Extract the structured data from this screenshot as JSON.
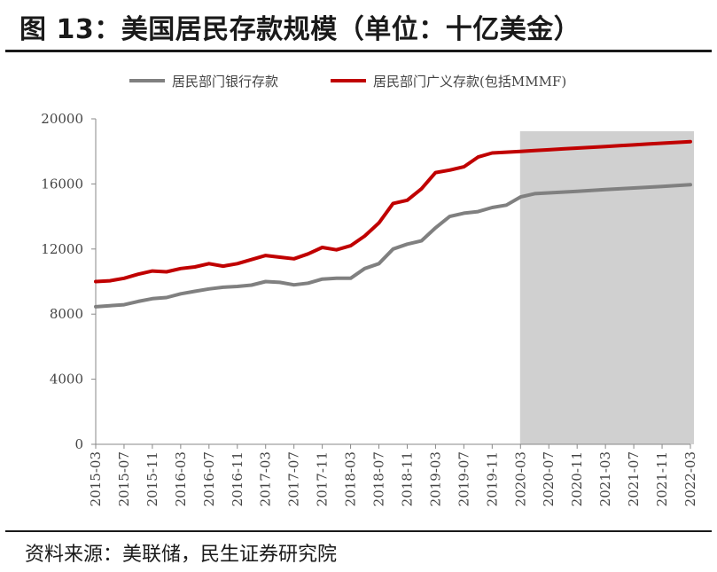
{
  "header": {
    "title": "图 13：美国居民存款规模（单位：十亿美金）"
  },
  "footer": {
    "source": "资料来源：美联储，民生证券研究院"
  },
  "chart_data": {
    "type": "line",
    "ylim": [
      0,
      20000
    ],
    "yticks": [
      0,
      4000,
      8000,
      12000,
      16000,
      20000
    ],
    "grid": false,
    "legend_position": "top",
    "x_tick_labels": [
      "2015-03",
      "2015-07",
      "2015-11",
      "2016-03",
      "2016-07",
      "2016-11",
      "2017-03",
      "2017-07",
      "2017-11",
      "2018-03",
      "2018-07",
      "2018-11",
      "2019-03",
      "2019-07",
      "2019-11",
      "2020-03",
      "2020-07",
      "2020-11",
      "2021-03",
      "2021-07",
      "2021-11",
      "2022-03"
    ],
    "shaded_region": {
      "from": "2020-03",
      "to": "2022-03",
      "color": "#d0d0d0"
    },
    "series": [
      {
        "name": "居民部门银行存款",
        "color": "#808080",
        "x": [
          "2015-03",
          "2015-05",
          "2015-07",
          "2015-09",
          "2015-11",
          "2016-01",
          "2016-03",
          "2016-05",
          "2016-07",
          "2016-09",
          "2016-11",
          "2017-01",
          "2017-03",
          "2017-05",
          "2017-07",
          "2017-09",
          "2017-11",
          "2018-01",
          "2018-03",
          "2018-05",
          "2018-07",
          "2018-09",
          "2018-11",
          "2019-01",
          "2019-03",
          "2019-05",
          "2019-07",
          "2019-09",
          "2019-11",
          "2020-01",
          "2020-03",
          "2020-05",
          "2020-07",
          "2020-09",
          "2020-11",
          "2021-01",
          "2021-03",
          "2021-05",
          "2021-07",
          "2021-09",
          "2021-11",
          "2022-01",
          "2022-03"
        ],
        "values": [
          8450,
          8520,
          8580,
          8780,
          8950,
          9020,
          9250,
          9400,
          9550,
          9650,
          9700,
          9780,
          10000,
          9950,
          9800,
          9900,
          10150,
          10200,
          10200,
          10800,
          11100,
          12000,
          12300,
          12500,
          13300,
          14000,
          14200,
          14300,
          14550,
          14700,
          15200,
          15400,
          15450,
          15500,
          15550,
          15600,
          15650,
          15700,
          15750,
          15800,
          15850,
          15900,
          15950
        ]
      },
      {
        "name": "居民部门广义存款(包括MMMF)",
        "color": "#c00000",
        "x": [
          "2015-03",
          "2015-05",
          "2015-07",
          "2015-09",
          "2015-11",
          "2016-01",
          "2016-03",
          "2016-05",
          "2016-07",
          "2016-09",
          "2016-11",
          "2017-01",
          "2017-03",
          "2017-05",
          "2017-07",
          "2017-09",
          "2017-11",
          "2018-01",
          "2018-03",
          "2018-05",
          "2018-07",
          "2018-09",
          "2018-11",
          "2019-01",
          "2019-03",
          "2019-05",
          "2019-07",
          "2019-09",
          "2019-11",
          "2020-01",
          "2020-03",
          "2020-05",
          "2020-07",
          "2020-09",
          "2020-11",
          "2021-01",
          "2021-03",
          "2021-05",
          "2021-07",
          "2021-09",
          "2021-11",
          "2022-01",
          "2022-03"
        ],
        "values": [
          10000,
          10050,
          10200,
          10450,
          10650,
          10600,
          10800,
          10900,
          11100,
          10950,
          11100,
          11350,
          11600,
          11500,
          11400,
          11700,
          12100,
          11950,
          12200,
          12800,
          13600,
          14800,
          15000,
          15700,
          16700,
          16850,
          17050,
          17650,
          17900,
          17950,
          18000,
          18050,
          18100,
          18150,
          18200,
          18250,
          18300,
          18350,
          18400,
          18450,
          18500,
          18550,
          18600
        ]
      }
    ]
  }
}
